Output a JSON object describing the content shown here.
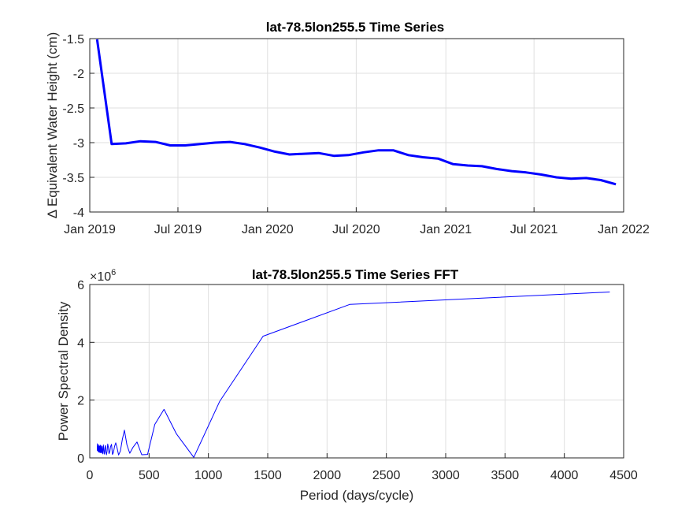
{
  "chart_data": [
    {
      "type": "line",
      "title": "lat-78.5lon255.5 Time Series",
      "xlabel": "",
      "ylabel": "Δ Equivalent Water Height (cm)",
      "x_ticks": [
        "Jan 2019",
        "Jul 2019",
        "Jan 2020",
        "Jul 2020",
        "Jan 2021",
        "Jul 2021",
        "Jan 2022"
      ],
      "y_ticks": [
        "-1.5",
        "-2",
        "-2.5",
        "-3",
        "-3.5",
        "-4"
      ],
      "xlim": [
        "2019-01-01",
        "2022-01-01"
      ],
      "ylim": [
        -4,
        -1.5
      ],
      "grid": true,
      "line_color": "#0000ff",
      "series": [
        {
          "x": [
            "2019-01-16",
            "2019-02-15",
            "2019-03-16",
            "2019-04-15",
            "2019-05-16",
            "2019-06-15",
            "2019-07-16",
            "2019-08-16",
            "2019-09-15",
            "2019-10-16",
            "2019-11-15",
            "2019-12-16",
            "2020-01-16",
            "2020-02-15",
            "2020-03-16",
            "2020-04-15",
            "2020-05-16",
            "2020-06-15",
            "2020-07-16",
            "2020-08-16",
            "2020-09-15",
            "2020-10-16",
            "2020-11-15",
            "2020-12-16",
            "2021-01-16",
            "2021-02-15",
            "2021-03-16",
            "2021-04-15",
            "2021-05-16",
            "2021-06-15",
            "2021-07-16",
            "2021-08-16",
            "2021-09-15",
            "2021-10-16",
            "2021-11-15",
            "2021-12-16"
          ],
          "values": [
            -1.51,
            -3.02,
            -3.01,
            -2.98,
            -2.99,
            -3.04,
            -3.04,
            -3.02,
            -3.0,
            -2.99,
            -3.02,
            -3.07,
            -3.13,
            -3.17,
            -3.16,
            -3.15,
            -3.19,
            -3.18,
            -3.14,
            -3.11,
            -3.11,
            -3.18,
            -3.21,
            -3.23,
            -3.31,
            -3.33,
            -3.34,
            -3.38,
            -3.41,
            -3.43,
            -3.46,
            -3.5,
            -3.52,
            -3.51,
            -3.54,
            -3.6
          ]
        }
      ]
    },
    {
      "type": "line",
      "title": "lat-78.5lon255.5 Time Series FFT",
      "xlabel": "Period (days/cycle)",
      "ylabel": "Power Spectral Density",
      "y_exponent": "×10",
      "y_exponent_power": "6",
      "x_ticks": [
        "0",
        "500",
        "1000",
        "1500",
        "2000",
        "2500",
        "3000",
        "3500",
        "4000",
        "4500"
      ],
      "y_ticks": [
        "0",
        "2",
        "4",
        "6"
      ],
      "xlim": [
        0,
        4500
      ],
      "ylim": [
        0,
        6000000
      ],
      "grid": true,
      "line_color": "#0000ff",
      "series": [
        {
          "x": [
            4383,
            2191,
            1461,
            1096,
            877,
            731,
            626,
            548,
            487,
            438,
            398,
            365,
            337,
            313,
            292,
            274,
            258,
            243,
            231,
            219,
            209,
            199,
            191,
            183,
            175,
            169,
            162,
            157,
            151,
            146,
            141,
            137,
            133,
            129,
            125,
            122,
            118,
            115,
            112,
            110,
            107,
            104,
            102,
            100,
            97,
            95,
            93,
            91,
            89,
            88,
            86,
            84,
            83,
            81,
            80,
            78,
            77,
            75,
            74,
            73,
            72,
            71,
            70,
            68,
            67,
            66,
            65,
            64,
            63
          ],
          "values": [
            5740000,
            5310000,
            4210000,
            1960000,
            20000,
            830000,
            1680000,
            1160000,
            120000,
            110000,
            550000,
            370000,
            160000,
            450000,
            960000,
            630000,
            240000,
            100000,
            330000,
            520000,
            400000,
            180000,
            120000,
            470000,
            390000,
            220000,
            150000,
            360000,
            480000,
            240000,
            110000,
            200000,
            430000,
            380000,
            160000,
            130000,
            300000,
            450000,
            280000,
            140000,
            230000,
            400000,
            340000,
            170000,
            200000,
            420000,
            360000,
            180000,
            240000,
            440000,
            300000,
            190000,
            260000,
            410000,
            330000,
            200000,
            280000,
            460000,
            310000,
            210000,
            300000,
            390000,
            270000,
            240000,
            350000,
            430000,
            280000,
            260000,
            500000
          ]
        }
      ]
    }
  ]
}
